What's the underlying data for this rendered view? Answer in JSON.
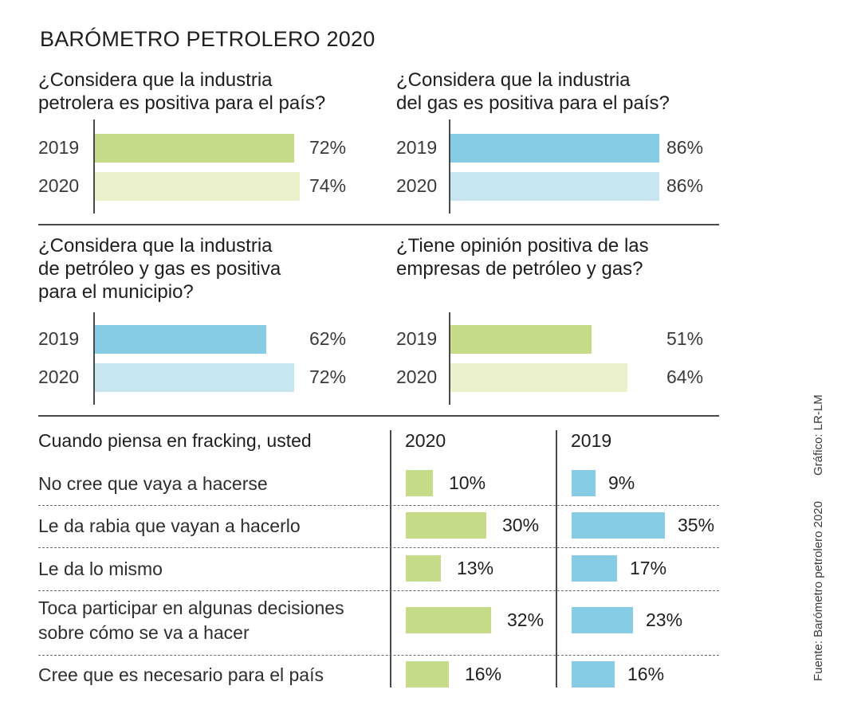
{
  "title": "BARÓMETRO PETROLERO 2020",
  "colors": {
    "green_2019": "#c5db87",
    "green_2020": "#ebf1cd",
    "blue_2019": "#86cce4",
    "blue_2020": "#c7e6f2",
    "green_table": "#c5db87",
    "blue_table": "#86cce4"
  },
  "chart_data": [
    {
      "type": "bar",
      "orientation": "horizontal",
      "title": "¿Considera que la industria petrolera es positiva para el país?",
      "title_lines": [
        "¿Considera que la industria",
        "petrolera es positiva para el país?"
      ],
      "categories": [
        "2019",
        "2020"
      ],
      "values": [
        72,
        74
      ],
      "labels": [
        "72%",
        "74%"
      ],
      "palette": [
        "green_2019",
        "green_2020"
      ],
      "unit": "%"
    },
    {
      "type": "bar",
      "orientation": "horizontal",
      "title": "¿Considera que la industria del gas es positiva para el país?",
      "title_lines": [
        "¿Considera que la industria",
        "del gas es positiva para el país?"
      ],
      "categories": [
        "2019",
        "2020"
      ],
      "values": [
        86,
        86
      ],
      "labels": [
        "86%",
        "86%"
      ],
      "palette": [
        "blue_2019",
        "blue_2020"
      ],
      "unit": "%"
    },
    {
      "type": "bar",
      "orientation": "horizontal",
      "title": "¿Considera que la industria de petróleo y gas es positiva para el municipio?",
      "title_lines": [
        "¿Considera que la industria",
        "de petróleo y gas es positiva",
        "para el municipio?"
      ],
      "categories": [
        "2019",
        "2020"
      ],
      "values": [
        62,
        72
      ],
      "labels": [
        "62%",
        "72%"
      ],
      "palette": [
        "blue_2019",
        "blue_2020"
      ],
      "unit": "%"
    },
    {
      "type": "bar",
      "orientation": "horizontal",
      "title": "¿Tiene opinión positiva de las empresas de petróleo y gas?",
      "title_lines": [
        "¿Tiene opinión positiva de las",
        "empresas de petróleo y gas?"
      ],
      "categories": [
        "2019",
        "2020"
      ],
      "values": [
        51,
        64
      ],
      "labels": [
        "51%",
        "64%"
      ],
      "palette": [
        "green_2019",
        "green_2020"
      ],
      "unit": "%"
    },
    {
      "type": "table",
      "title": "Cuando piensa en fracking, usted",
      "columns": [
        "2020",
        "2019"
      ],
      "rows": [
        {
          "label_lines": [
            "No cree que vaya a hacerse"
          ],
          "v2020": 10,
          "l2020": "10%",
          "v2019": 9,
          "l2019": "9%"
        },
        {
          "label_lines": [
            "Le da rabia que vayan a hacerlo"
          ],
          "v2020": 30,
          "l2020": "30%",
          "v2019": 35,
          "l2019": "35%"
        },
        {
          "label_lines": [
            "Le da lo mismo"
          ],
          "v2020": 13,
          "l2020": "13%",
          "v2019": 17,
          "l2019": "17%"
        },
        {
          "label_lines": [
            "Toca participar en algunas decisiones",
            "sobre cómo se va a hacer"
          ],
          "v2020": 32,
          "l2020": "32%",
          "v2019": 23,
          "l2019": "23%"
        },
        {
          "label_lines": [
            "Cree que es necesario para el país"
          ],
          "v2020": 16,
          "l2020": "16%",
          "v2019": 16,
          "l2019": "16%"
        }
      ]
    }
  ],
  "footer": {
    "source": "Fuente: Barómetro petrolero 2020",
    "credit": "Gráfico: LR-LM"
  }
}
